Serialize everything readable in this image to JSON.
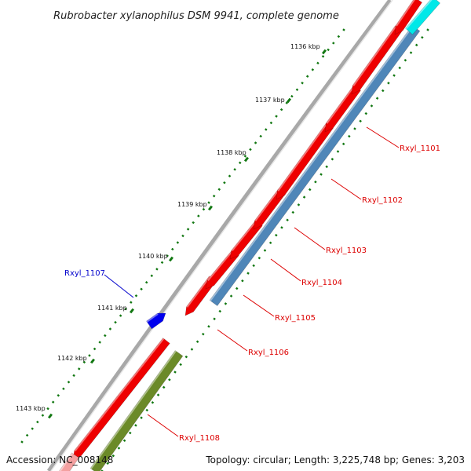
{
  "title": "Rubrobacter xylanophilus DSM 9941, complete genome",
  "footer": {
    "accession": "Accession: NC_008148",
    "summary": "Topology: circular; Length: 3,225,748 bp; Genes: 3,203"
  },
  "colors": {
    "backbone": "#8a8a8a",
    "forward_cds": "#ee0000",
    "reverse_cds_blue": "#4f86b8",
    "reverse_cds_olive": "#6b8a28",
    "forward_other": "#0000ee",
    "reverse_other_cyan": "#00e8e8",
    "tick": "#117711",
    "label_red": "#dd0000",
    "label_blue": "#0000cc"
  },
  "chart_data": {
    "type": "genome-map",
    "ruler": {
      "unit": "kbp",
      "ticks": [
        {
          "value": 1136,
          "label": "1136 kbp"
        },
        {
          "value": 1137,
          "label": "1137 kbp"
        },
        {
          "value": 1138,
          "label": "1138 kbp"
        },
        {
          "value": 1139,
          "label": "1139 kbp"
        },
        {
          "value": 1140,
          "label": "1140 kbp"
        },
        {
          "value": 1141,
          "label": "1141 kbp"
        },
        {
          "value": 1142,
          "label": "1142 kbp"
        },
        {
          "value": 1143,
          "label": "1143 kbp"
        }
      ]
    },
    "genes": [
      {
        "name": "Rxyl_1101",
        "strand": "reverse",
        "kind": "CDS",
        "labeled": true
      },
      {
        "name": "Rxyl_1102",
        "strand": "reverse",
        "kind": "CDS",
        "labeled": true
      },
      {
        "name": "Rxyl_1103",
        "strand": "reverse",
        "kind": "CDS",
        "labeled": true
      },
      {
        "name": "Rxyl_1104",
        "strand": "reverse",
        "kind": "CDS",
        "labeled": true
      },
      {
        "name": "Rxyl_1105",
        "strand": "reverse",
        "kind": "CDS",
        "labeled": true
      },
      {
        "name": "Rxyl_1106",
        "strand": "forward",
        "kind": "CDS",
        "labeled": true
      },
      {
        "name": "Rxyl_1107",
        "strand": "forward",
        "kind": "other",
        "labeled": true
      },
      {
        "name": "Rxyl_1108",
        "strand": "reverse",
        "kind": "CDS",
        "labeled": true
      }
    ]
  }
}
